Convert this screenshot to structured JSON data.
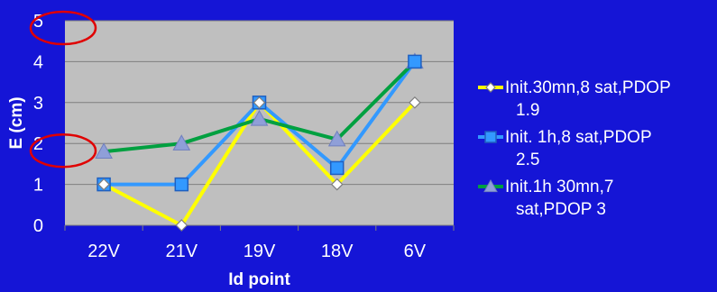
{
  "colors": {
    "background": "#1515d6",
    "plot_area": "#bfbfbf",
    "gridline": "#7f7f7f",
    "text": "#ffffff",
    "annotation": "#e00000"
  },
  "chart_data": {
    "type": "line",
    "title": "",
    "xlabel": "Id point",
    "ylabel": "E (cm)",
    "categories": [
      "22V",
      "21V",
      "19V",
      "18V",
      "6V"
    ],
    "y_ticks": [
      "0",
      "1",
      "2",
      "3",
      "4",
      "5"
    ],
    "ylim": [
      0,
      5
    ],
    "grid": true,
    "legend_position": "right",
    "series": [
      {
        "name": "Init.30mn,8 sat,PDOP 1.9",
        "legend_lines": [
          "Init.30mn,8 sat,PDOP",
          "1.9"
        ],
        "values": [
          1,
          0,
          3,
          1,
          3
        ],
        "color": "#ffff00",
        "marker": "diamond",
        "marker_fill": "#ffffff"
      },
      {
        "name": "Init. 1h,8 sat,PDOP 2.5",
        "legend_lines": [
          "Init. 1h,8 sat,PDOP",
          "2.5"
        ],
        "values": [
          1,
          1,
          3,
          1.4,
          4
        ],
        "color": "#3399ff",
        "marker": "square",
        "marker_fill": "#3399ff"
      },
      {
        "name": "Init.1h 30mn,7 sat,PDOP 3",
        "legend_lines": [
          "Init.1h 30mn,7",
          "sat,PDOP 3"
        ],
        "values": [
          1.8,
          2,
          2.6,
          2.1,
          4
        ],
        "color": "#00a040",
        "marker": "triangle",
        "marker_fill": "#8f9fd8"
      }
    ],
    "annotations": [
      {
        "type": "ellipse",
        "description": "red circle around y tick 5",
        "target_tick": "5"
      },
      {
        "type": "ellipse",
        "description": "red circle around y tick 2",
        "target_tick": "2"
      }
    ]
  }
}
